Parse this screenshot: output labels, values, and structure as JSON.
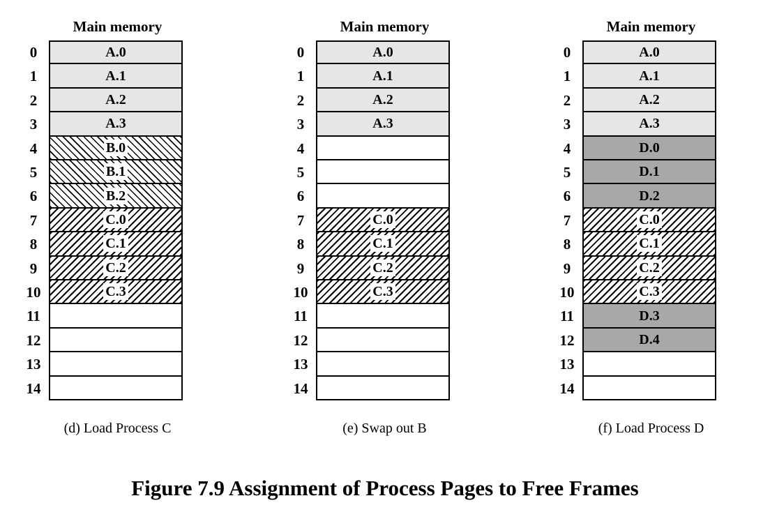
{
  "panels": [
    {
      "title": "Main memory",
      "caption": "(d) Load Process C",
      "frames": [
        {
          "num": "0",
          "label": "A.0",
          "process": "A"
        },
        {
          "num": "1",
          "label": "A.1",
          "process": "A"
        },
        {
          "num": "2",
          "label": "A.2",
          "process": "A"
        },
        {
          "num": "3",
          "label": "A.3",
          "process": "A"
        },
        {
          "num": "4",
          "label": "B.0",
          "process": "B"
        },
        {
          "num": "5",
          "label": "B.1",
          "process": "B"
        },
        {
          "num": "6",
          "label": "B.2",
          "process": "B"
        },
        {
          "num": "7",
          "label": "C.0",
          "process": "C"
        },
        {
          "num": "8",
          "label": "C.1",
          "process": "C"
        },
        {
          "num": "9",
          "label": "C.2",
          "process": "C"
        },
        {
          "num": "10",
          "label": "C.3",
          "process": "C"
        },
        {
          "num": "11",
          "label": "",
          "process": ""
        },
        {
          "num": "12",
          "label": "",
          "process": ""
        },
        {
          "num": "13",
          "label": "",
          "process": ""
        },
        {
          "num": "14",
          "label": "",
          "process": ""
        }
      ]
    },
    {
      "title": "Main memory",
      "caption": "(e) Swap out B",
      "frames": [
        {
          "num": "0",
          "label": "A.0",
          "process": "A"
        },
        {
          "num": "1",
          "label": "A.1",
          "process": "A"
        },
        {
          "num": "2",
          "label": "A.2",
          "process": "A"
        },
        {
          "num": "3",
          "label": "A.3",
          "process": "A"
        },
        {
          "num": "4",
          "label": "",
          "process": ""
        },
        {
          "num": "5",
          "label": "",
          "process": ""
        },
        {
          "num": "6",
          "label": "",
          "process": ""
        },
        {
          "num": "7",
          "label": "C.0",
          "process": "C"
        },
        {
          "num": "8",
          "label": "C.1",
          "process": "C"
        },
        {
          "num": "9",
          "label": "C.2",
          "process": "C"
        },
        {
          "num": "10",
          "label": "C.3",
          "process": "C"
        },
        {
          "num": "11",
          "label": "",
          "process": ""
        },
        {
          "num": "12",
          "label": "",
          "process": ""
        },
        {
          "num": "13",
          "label": "",
          "process": ""
        },
        {
          "num": "14",
          "label": "",
          "process": ""
        }
      ]
    },
    {
      "title": "Main memory",
      "caption": "(f) Load Process D",
      "frames": [
        {
          "num": "0",
          "label": "A.0",
          "process": "A"
        },
        {
          "num": "1",
          "label": "A.1",
          "process": "A"
        },
        {
          "num": "2",
          "label": "A.2",
          "process": "A"
        },
        {
          "num": "3",
          "label": "A.3",
          "process": "A"
        },
        {
          "num": "4",
          "label": "D.0",
          "process": "D"
        },
        {
          "num": "5",
          "label": "D.1",
          "process": "D"
        },
        {
          "num": "6",
          "label": "D.2",
          "process": "D"
        },
        {
          "num": "7",
          "label": "C.0",
          "process": "C"
        },
        {
          "num": "8",
          "label": "C.1",
          "process": "C"
        },
        {
          "num": "9",
          "label": "C.2",
          "process": "C"
        },
        {
          "num": "10",
          "label": "C.3",
          "process": "C"
        },
        {
          "num": "11",
          "label": "D.3",
          "process": "D"
        },
        {
          "num": "12",
          "label": "D.4",
          "process": "D"
        },
        {
          "num": "13",
          "label": "",
          "process": ""
        },
        {
          "num": "14",
          "label": "",
          "process": ""
        }
      ]
    }
  ],
  "figure_caption": "Figure 7.9   Assignment of Process Pages to Free Frames"
}
